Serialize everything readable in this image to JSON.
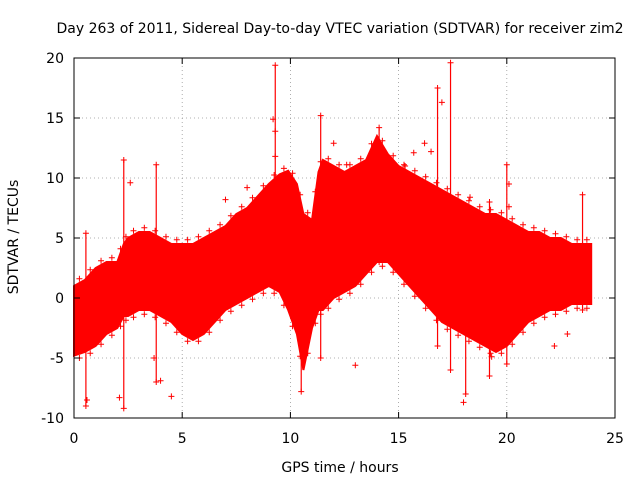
{
  "chart_data": {
    "type": "scatter",
    "title": "Day 263 of 2011, Sidereal Day-to-day VTEC variation (SDTVAR) for receiver zim2",
    "xlabel": "GPS time / hours",
    "ylabel": "SDTVAR / TECUs",
    "xlim": [
      0,
      25
    ],
    "ylim": [
      -10,
      20
    ],
    "grid": true,
    "marker": "+",
    "color": "#ff0000",
    "x_ticks": [
      "0",
      "5",
      "10",
      "15",
      "20",
      "25"
    ],
    "y_ticks": [
      "-10",
      "-5",
      "0",
      "5",
      "10",
      "15",
      "20"
    ],
    "band": {
      "x": [
        0,
        0.5,
        1,
        1.5,
        2,
        2.3,
        2.5,
        3,
        3.5,
        4,
        4.5,
        5,
        5.5,
        6,
        6.5,
        7,
        7.5,
        8,
        8.5,
        9,
        9.5,
        9.9,
        10.3,
        10.6,
        11,
        11.3,
        11.5,
        12,
        12.5,
        13,
        13.5,
        14,
        14.5,
        15,
        15.5,
        16,
        16.5,
        17,
        17.5,
        18,
        18.5,
        19,
        19.5,
        20,
        20.5,
        21,
        21.5,
        22,
        22.5,
        23,
        23.5,
        23.9
      ],
      "upper": [
        1.0,
        1.5,
        2.5,
        3.0,
        3.0,
        4.5,
        5.0,
        5.5,
        5.5,
        5.0,
        4.5,
        4.5,
        4.5,
        5.0,
        5.5,
        6.0,
        7.0,
        7.5,
        8.5,
        9.5,
        10.3,
        10.6,
        9.5,
        7.0,
        6.5,
        10.5,
        11.5,
        11.0,
        10.5,
        11.0,
        11.5,
        13.5,
        12.0,
        11.0,
        10.5,
        10.0,
        9.5,
        9.0,
        8.5,
        8.0,
        7.5,
        7.0,
        7.0,
        6.5,
        6.0,
        5.5,
        5.5,
        5.0,
        5.0,
        4.5,
        4.5,
        4.5
      ],
      "lower": [
        -4.8,
        -4.5,
        -4.0,
        -3.0,
        -2.5,
        -1.5,
        -1.5,
        -1.0,
        -1.0,
        -1.5,
        -2.0,
        -3.0,
        -3.5,
        -3.0,
        -2.0,
        -1.0,
        -0.5,
        0.0,
        0.5,
        1.0,
        0.5,
        -1.0,
        -3.0,
        -6.0,
        -2.5,
        -1.0,
        -1.0,
        0.0,
        0.5,
        1.0,
        2.0,
        3.0,
        3.0,
        2.0,
        1.0,
        0.0,
        -1.0,
        -2.0,
        -2.5,
        -3.0,
        -3.5,
        -4.0,
        -4.5,
        -4.0,
        -3.0,
        -2.0,
        -1.5,
        -1.0,
        -1.0,
        -0.5,
        -0.5,
        -0.5
      ]
    },
    "spikes": [
      {
        "x": 0.55,
        "y_low": -9.0,
        "y_high": 5.4
      },
      {
        "x": 2.3,
        "y_low": -9.2,
        "y_high": 11.5
      },
      {
        "x": 3.8,
        "y_low": -7.0,
        "y_high": 11.1
      },
      {
        "x": 9.3,
        "y_low": 1.0,
        "y_high": 19.4
      },
      {
        "x": 10.5,
        "y_low": -7.8,
        "y_high": 5.0
      },
      {
        "x": 11.4,
        "y_low": -5.0,
        "y_high": 15.2
      },
      {
        "x": 14.1,
        "y_low": 3.0,
        "y_high": 14.2
      },
      {
        "x": 16.8,
        "y_low": -4.0,
        "y_high": 17.5
      },
      {
        "x": 17.4,
        "y_low": -6.0,
        "y_high": 19.6
      },
      {
        "x": 18.1,
        "y_low": -8.0,
        "y_high": 7.6
      },
      {
        "x": 19.2,
        "y_low": -6.5,
        "y_high": 8.0
      },
      {
        "x": 20.0,
        "y_low": -5.5,
        "y_high": 11.1
      },
      {
        "x": 23.5,
        "y_low": -1.0,
        "y_high": 8.6
      }
    ],
    "outliers": [
      {
        "x": 0.6,
        "y": -8.5
      },
      {
        "x": 2.1,
        "y": -8.3
      },
      {
        "x": 3.7,
        "y": -5.0
      },
      {
        "x": 4.0,
        "y": -6.9
      },
      {
        "x": 4.5,
        "y": -8.2
      },
      {
        "x": 2.6,
        "y": 9.6
      },
      {
        "x": 7.0,
        "y": 8.2
      },
      {
        "x": 8.0,
        "y": 9.2
      },
      {
        "x": 9.2,
        "y": 14.9
      },
      {
        "x": 9.3,
        "y": 13.9
      },
      {
        "x": 9.3,
        "y": 11.8
      },
      {
        "x": 12.0,
        "y": 12.9
      },
      {
        "x": 12.6,
        "y": 11.1
      },
      {
        "x": 13.0,
        "y": -5.6
      },
      {
        "x": 15.3,
        "y": 11.0
      },
      {
        "x": 15.7,
        "y": 12.1
      },
      {
        "x": 16.2,
        "y": 12.9
      },
      {
        "x": 16.5,
        "y": 12.2
      },
      {
        "x": 17.0,
        "y": 16.3
      },
      {
        "x": 18.3,
        "y": 8.4
      },
      {
        "x": 18.0,
        "y": -8.7
      },
      {
        "x": 20.1,
        "y": 9.5
      },
      {
        "x": 20.1,
        "y": 7.6
      },
      {
        "x": 21.4,
        "y": 5.0
      },
      {
        "x": 22.2,
        "y": -4.0
      },
      {
        "x": 22.8,
        "y": -3.0
      },
      {
        "x": 19.3,
        "y": -4.9
      }
    ]
  }
}
